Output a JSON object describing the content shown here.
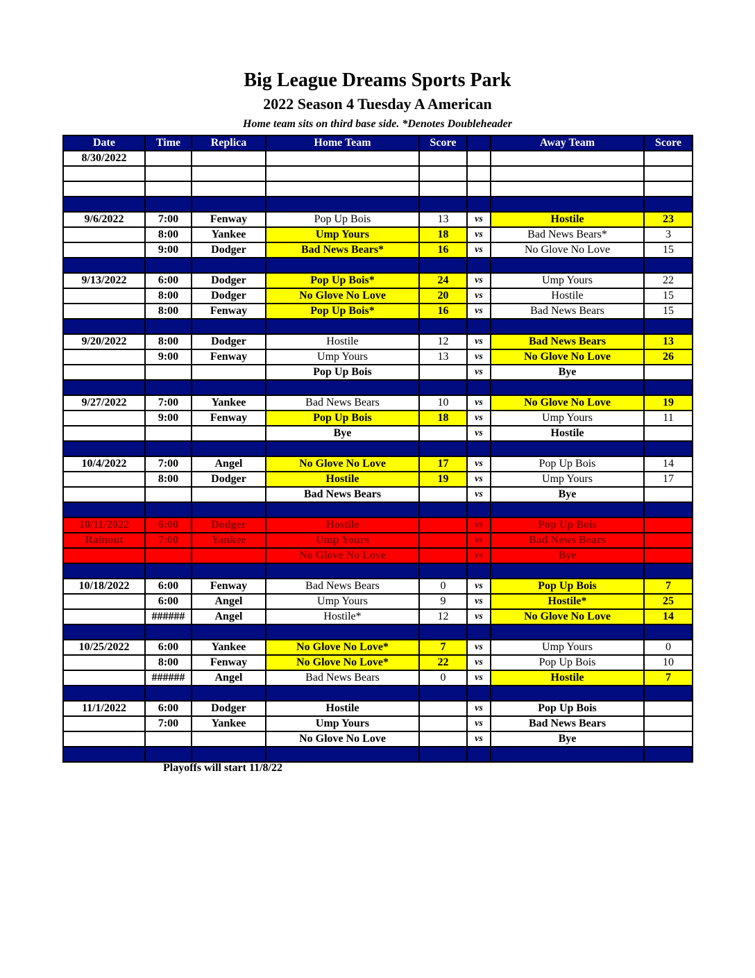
{
  "header": {
    "title": "Big League Dreams Sports Park",
    "subtitle": "2022 Season 4 Tuesday A American",
    "note": "Home team sits on third base side.  *Denotes Doubleheader"
  },
  "columns": [
    "Date",
    "Time",
    "Replica",
    "Home Team",
    "Score",
    "",
    "Away Team",
    "Score"
  ],
  "colors": {
    "header": "#000c80",
    "winner": "#ffff00",
    "rainout": "#ff0000"
  },
  "weeks": [
    {
      "games": [
        [
          "8/30/2022",
          "",
          "",
          "",
          "",
          "",
          "",
          ""
        ],
        [
          "",
          "",
          "",
          "",
          "",
          "",
          "",
          ""
        ],
        [
          "",
          "",
          "",
          "",
          "",
          "",
          "",
          ""
        ]
      ],
      "winners": [
        null,
        null,
        null
      ]
    },
    {
      "games": [
        [
          "9/6/2022",
          "7:00",
          "Fenway",
          "Pop Up Bois",
          "13",
          "vs",
          "Hostile",
          "23"
        ],
        [
          "",
          "8:00",
          "Yankee",
          "Ump Yours",
          "18",
          "vs",
          "Bad News Bears*",
          "3"
        ],
        [
          "",
          "9:00",
          "Dodger",
          "Bad News Bears*",
          "16",
          "vs",
          "No Glove No Love",
          "15"
        ]
      ],
      "winners": [
        "away",
        "home",
        "home"
      ]
    },
    {
      "games": [
        [
          "9/13/2022",
          "6:00",
          "Dodger",
          "Pop Up Bois*",
          "24",
          "vs",
          "Ump Yours",
          "22"
        ],
        [
          "",
          "8:00",
          "Dodger",
          "No Glove No Love",
          "20",
          "vs",
          "Hostile",
          "15"
        ],
        [
          "",
          "8:00",
          "Fenway",
          "Pop Up Bois*",
          "16",
          "vs",
          "Bad News Bears",
          "15"
        ]
      ],
      "winners": [
        "home",
        "home",
        "home"
      ]
    },
    {
      "games": [
        [
          "9/20/2022",
          "8:00",
          "Dodger",
          "Hostile",
          "12",
          "vs",
          "Bad News Bears",
          "13"
        ],
        [
          "",
          "9:00",
          "Fenway",
          "Ump Yours",
          "13",
          "vs",
          "No Glove No Love",
          "26"
        ],
        [
          "",
          "",
          "",
          "Pop Up Bois",
          "",
          "vs",
          "Bye",
          ""
        ]
      ],
      "winners": [
        "away",
        "away",
        null
      ]
    },
    {
      "games": [
        [
          "9/27/2022",
          "7:00",
          "Yankee",
          "Bad News Bears",
          "10",
          "vs",
          "No Glove No Love",
          "19"
        ],
        [
          "",
          "9:00",
          "Fenway",
          "Pop Up Bois",
          "18",
          "vs",
          "Ump Yours",
          "11"
        ],
        [
          "",
          "",
          "",
          "Bye",
          "",
          "vs",
          "Hostile",
          ""
        ]
      ],
      "winners": [
        "away",
        "home",
        null
      ]
    },
    {
      "games": [
        [
          "10/4/2022",
          "7:00",
          "Angel",
          "No Glove No Love",
          "17",
          "vs",
          "Pop Up Bois",
          "14"
        ],
        [
          "",
          "8:00",
          "Dodger",
          "Hostile",
          "19",
          "vs",
          "Ump Yours",
          "17"
        ],
        [
          "",
          "",
          "",
          "Bad News Bears",
          "",
          "vs",
          "Bye",
          ""
        ]
      ],
      "winners": [
        "home",
        "home",
        null
      ]
    },
    {
      "rainout": true,
      "games": [
        [
          "10/11/2022",
          "6:00",
          "Dodger",
          "Hostile",
          "",
          "vs",
          "Pop Up Bois",
          ""
        ],
        [
          "Rainout",
          "7:00",
          "Yankee",
          "Ump Yours",
          "",
          "vs",
          "Bad News Bears",
          ""
        ],
        [
          "",
          "",
          "",
          "No Glove No Love",
          "",
          "vs",
          "Bye",
          ""
        ]
      ],
      "winners": [
        null,
        null,
        null
      ]
    },
    {
      "games": [
        [
          "10/18/2022",
          "6:00",
          "Fenway",
          "Bad News Bears",
          "0",
          "vs",
          "Pop Up Bois",
          "7"
        ],
        [
          "",
          "6:00",
          "Angel",
          "Ump Yours",
          "9",
          "vs",
          "Hostile*",
          "25"
        ],
        [
          "",
          "######",
          "Angel",
          "Hostile*",
          "12",
          "vs",
          "No Glove No Love",
          "14"
        ]
      ],
      "winners": [
        "away",
        "away",
        "away"
      ]
    },
    {
      "games": [
        [
          "10/25/2022",
          "6:00",
          "Yankee",
          "No Glove No Love*",
          "7",
          "vs",
          "Ump Yours",
          "0"
        ],
        [
          "",
          "8:00",
          "Fenway",
          "No Glove No Love*",
          "22",
          "vs",
          "Pop Up Bois",
          "10"
        ],
        [
          "",
          "######",
          "Angel",
          "Bad News Bears",
          "0",
          "vs",
          "Hostile",
          "7"
        ]
      ],
      "winners": [
        "home",
        "home",
        "away"
      ]
    },
    {
      "games": [
        [
          "11/1/2022",
          "6:00",
          "Dodger",
          "Hostile",
          "",
          "vs",
          "Pop Up Bois",
          ""
        ],
        [
          "",
          "7:00",
          "Yankee",
          "Ump Yours",
          "",
          "vs",
          "Bad News Bears",
          ""
        ],
        [
          "",
          "",
          "",
          "No Glove No Love",
          "",
          "vs",
          "Bye",
          ""
        ]
      ],
      "winners": [
        null,
        null,
        null
      ]
    }
  ],
  "footer": "Playoffs will start 11/8/22"
}
